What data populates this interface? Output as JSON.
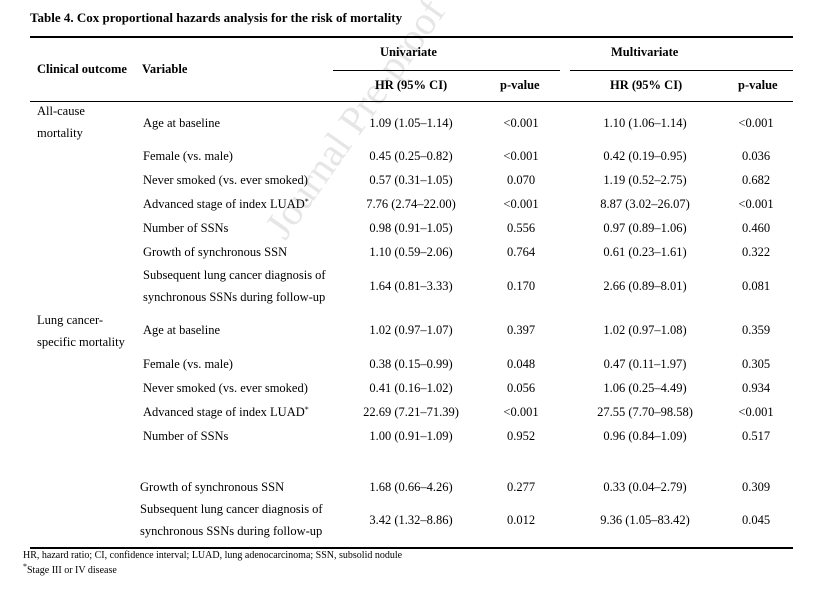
{
  "title": "Table 4. Cox proportional hazards analysis for the risk of mortality",
  "watermark": "Journal Pre-proof",
  "headers": {
    "clinical_outcome": "Clinical outcome",
    "variable": "Variable",
    "univariate": "Univariate",
    "multivariate": "Multivariate",
    "hr": "HR (95% CI)",
    "p": "p-value"
  },
  "groups": [
    {
      "outcome": [
        "All-cause",
        "mortality"
      ]
    },
    {
      "outcome": [
        "Lung cancer-",
        "specific mortality"
      ]
    }
  ],
  "rows": [
    {
      "variable": [
        "Age at baseline"
      ],
      "sup": "",
      "u_hr": "1.09 (1.05–1.14)",
      "u_p": "<0.001",
      "m_hr": "1.10 (1.06–1.14)",
      "m_p": "<0.001"
    },
    {
      "variable": [
        "Female (vs. male)"
      ],
      "sup": "",
      "u_hr": "0.45 (0.25–0.82)",
      "u_p": "<0.001",
      "m_hr": "0.42 (0.19–0.95)",
      "m_p": "0.036"
    },
    {
      "variable": [
        "Never smoked (vs. ever smoked)"
      ],
      "sup": "",
      "u_hr": "0.57 (0.31–1.05)",
      "u_p": "0.070",
      "m_hr": "1.19 (0.52–2.75)",
      "m_p": "0.682"
    },
    {
      "variable": [
        "Advanced stage of index LUAD"
      ],
      "sup": "*",
      "u_hr": "7.76 (2.74–22.00)",
      "u_p": "<0.001",
      "m_hr": "8.87 (3.02–26.07)",
      "m_p": "<0.001"
    },
    {
      "variable": [
        "Number of SSNs"
      ],
      "sup": "",
      "u_hr": "0.98 (0.91–1.05)",
      "u_p": "0.556",
      "m_hr": "0.97 (0.89–1.06)",
      "m_p": "0.460"
    },
    {
      "variable": [
        "Growth of synchronous SSN"
      ],
      "sup": "",
      "u_hr": "1.10 (0.59–2.06)",
      "u_p": "0.764",
      "m_hr": "0.61 (0.23–1.61)",
      "m_p": "0.322"
    },
    {
      "variable": [
        "Subsequent lung cancer diagnosis of",
        "synchronous SSNs during follow-up"
      ],
      "sup": "",
      "u_hr": "1.64 (0.81–3.33)",
      "u_p": "0.170",
      "m_hr": "2.66 (0.89–8.01)",
      "m_p": "0.081"
    },
    {
      "variable": [
        "Age at baseline"
      ],
      "sup": "",
      "u_hr": "1.02 (0.97–1.07)",
      "u_p": "0.397",
      "m_hr": "1.02 (0.97–1.08)",
      "m_p": "0.359"
    },
    {
      "variable": [
        "Female (vs. male)"
      ],
      "sup": "",
      "u_hr": "0.38 (0.15–0.99)",
      "u_p": "0.048",
      "m_hr": "0.47 (0.11–1.97)",
      "m_p": "0.305"
    },
    {
      "variable": [
        "Never smoked (vs. ever smoked)"
      ],
      "sup": "",
      "u_hr": "0.41 (0.16–1.02)",
      "u_p": "0.056",
      "m_hr": "1.06 (0.25–4.49)",
      "m_p": "0.934"
    },
    {
      "variable": [
        "Advanced stage of index LUAD"
      ],
      "sup": "*",
      "u_hr": "22.69 (7.21–71.39)",
      "u_p": "<0.001",
      "m_hr": "27.55 (7.70–98.58)",
      "m_p": "<0.001"
    },
    {
      "variable": [
        "Number of SSNs"
      ],
      "sup": "",
      "u_hr": "1.00 (0.91–1.09)",
      "u_p": "0.952",
      "m_hr": "0.96 (0.84–1.09)",
      "m_p": "0.517"
    },
    {
      "variable": [
        "Growth of synchronous SSN"
      ],
      "sup": "",
      "u_hr": "1.68 (0.66–4.26)",
      "u_p": "0.277",
      "m_hr": "0.33 (0.04–2.79)",
      "m_p": "0.309"
    },
    {
      "variable": [
        "Subsequent lung cancer diagnosis of",
        "synchronous SSNs during follow-up"
      ],
      "sup": "",
      "u_hr": "3.42 (1.32–8.86)",
      "u_p": "0.012",
      "m_hr": "9.36 (1.05–83.42)",
      "m_p": "0.045"
    }
  ],
  "footnotes": [
    "HR, hazard ratio; CI, confidence interval; LUAD, lung adenocarcinoma; SSN, subsolid nodule",
    "Stage III or IV disease"
  ],
  "footnote_marker": "*"
}
